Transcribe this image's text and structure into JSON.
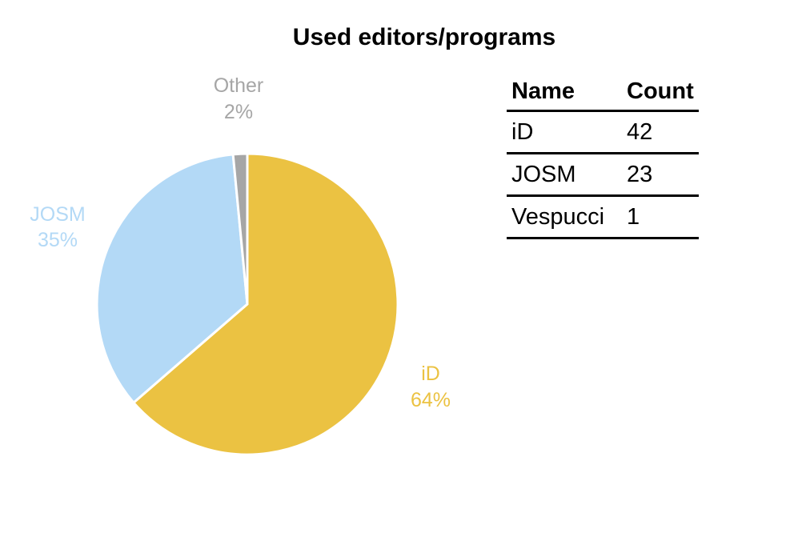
{
  "chart_data": {
    "type": "pie",
    "title": "Used editors/programs",
    "slices": [
      {
        "name": "iD",
        "value": 42,
        "percent_label": "64%",
        "color": "#ebc242"
      },
      {
        "name": "JOSM",
        "value": 23,
        "percent_label": "35%",
        "color": "#b3d9f6"
      },
      {
        "name": "Other",
        "value": 1,
        "percent_label": "2%",
        "color": "#a6a6a6"
      }
    ]
  },
  "table": {
    "headers": {
      "name": "Name",
      "count": "Count"
    },
    "rows": [
      {
        "name": "iD",
        "count": "42"
      },
      {
        "name": "JOSM",
        "count": "23"
      },
      {
        "name": "Vespucci",
        "count": "1"
      }
    ]
  }
}
